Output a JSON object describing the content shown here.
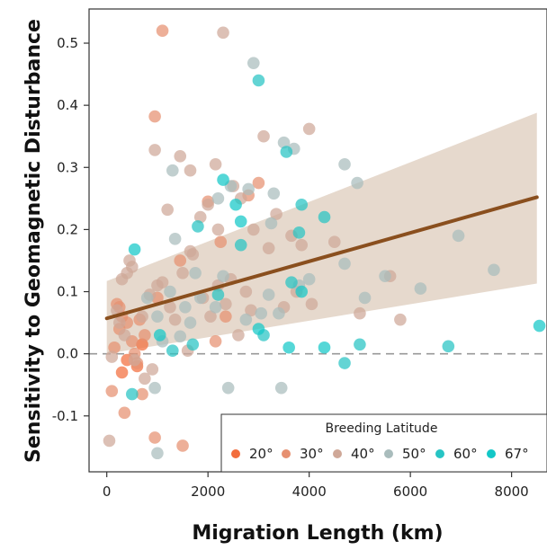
{
  "chart_data": {
    "type": "scatter",
    "xlabel": "Migration Length (km)",
    "ylabel": "Sensitivity to Geomagnetic Disturbance",
    "xlim": [
      -350,
      8700
    ],
    "ylim": [
      -0.19,
      0.555
    ],
    "xticks": [
      0,
      2000,
      4000,
      6000,
      8000
    ],
    "yticks": [
      -0.1,
      0.0,
      0.1,
      0.2,
      0.3,
      0.4,
      0.5
    ],
    "ytick_labels": [
      "-0.1",
      "0.0",
      "0.1",
      "0.2",
      "0.3",
      "0.4",
      "0.5"
    ],
    "reference_line": {
      "y": 0.0,
      "style": "dashed",
      "color": "#999999"
    },
    "trend": {
      "x": [
        0,
        8500
      ],
      "y": [
        0.057,
        0.252
      ],
      "ci_lower": [
        0.0,
        0.113
      ],
      "ci_upper": [
        0.117,
        0.388
      ],
      "color": "#8a4f1e",
      "band_color": "#e2d2c4"
    },
    "legend": {
      "title": "Breeding Latitude",
      "position": "bottom-right",
      "entries": [
        {
          "label": "20°",
          "color": "#f26d3d"
        },
        {
          "label": "30°",
          "color": "#e69070"
        },
        {
          "label": "40°",
          "color": "#cfa898"
        },
        {
          "label": "50°",
          "color": "#a9bcbc"
        },
        {
          "label": "60°",
          "color": "#27c4c4"
        },
        {
          "label": "67°",
          "color": "#13c7c7"
        }
      ]
    },
    "series": [
      {
        "name": "20°",
        "color": "#f26d3d",
        "x": [
          700,
          400,
          600,
          300
        ],
        "y": [
          0.015,
          -0.01,
          -0.02,
          -0.03
        ]
      },
      {
        "name": "30°",
        "color": "#e69070",
        "x": [
          1100,
          950,
          200,
          300,
          250,
          400,
          500,
          550,
          350,
          600,
          700,
          750,
          100,
          150,
          250,
          1000,
          2000,
          2250,
          2800,
          3000,
          1500,
          950,
          1450,
          2350,
          2150,
          650
        ],
        "y": [
          0.52,
          0.382,
          0.08,
          0.06,
          0.04,
          0.05,
          0.02,
          0.0,
          -0.095,
          -0.015,
          -0.065,
          0.03,
          -0.06,
          0.01,
          0.075,
          0.09,
          0.245,
          0.18,
          0.255,
          0.275,
          -0.148,
          -0.135,
          0.15,
          0.06,
          0.02,
          0.055
        ]
      },
      {
        "name": "40°",
        "color": "#cfa898",
        "x": [
          2300,
          950,
          1200,
          1450,
          1650,
          1850,
          2000,
          2150,
          2200,
          2500,
          2650,
          2900,
          3100,
          3350,
          3650,
          3850,
          4000,
          4500,
          5000,
          5600,
          5800,
          700,
          850,
          500,
          450,
          400,
          300,
          250,
          200,
          350,
          550,
          750,
          900,
          1000,
          1100,
          1250,
          1350,
          1500,
          1650,
          1700,
          1900,
          2050,
          2200,
          2350,
          2450,
          2600,
          2750,
          2850,
          3200,
          3500,
          3750,
          4050,
          100,
          50,
          1600
        ],
        "y": [
          0.517,
          0.328,
          0.232,
          0.318,
          0.295,
          0.22,
          0.24,
          0.305,
          0.2,
          0.27,
          0.25,
          0.2,
          0.35,
          0.225,
          0.19,
          0.175,
          0.362,
          0.18,
          0.065,
          0.125,
          0.055,
          0.06,
          0.095,
          0.14,
          0.15,
          0.13,
          0.12,
          0.05,
          0.07,
          0.03,
          -0.01,
          -0.04,
          -0.025,
          0.11,
          0.115,
          0.075,
          0.055,
          0.13,
          0.165,
          0.16,
          0.09,
          0.06,
          0.11,
          0.08,
          0.12,
          0.03,
          0.1,
          0.07,
          0.17,
          0.075,
          0.1,
          0.08,
          -0.005,
          -0.14,
          0.005
        ]
      },
      {
        "name": "50°",
        "color": "#a9bcbc",
        "x": [
          2900,
          1300,
          1350,
          1750,
          1850,
          2200,
          2450,
          2800,
          3250,
          3300,
          3500,
          3700,
          4700,
          4950,
          5500,
          6200,
          6950,
          7650,
          1550,
          1000,
          1100,
          1250,
          1450,
          1650,
          2150,
          2300,
          2750,
          3050,
          3200,
          3400,
          3800,
          4000,
          4700,
          5100,
          800,
          950,
          1000,
          3250,
          3450,
          2400
        ],
        "y": [
          0.468,
          0.295,
          0.185,
          0.13,
          0.09,
          0.25,
          0.27,
          0.265,
          0.21,
          0.258,
          0.34,
          0.33,
          0.305,
          0.275,
          0.125,
          0.105,
          0.19,
          0.135,
          0.075,
          0.06,
          0.02,
          0.1,
          0.028,
          0.05,
          0.075,
          0.125,
          0.055,
          0.065,
          0.095,
          0.065,
          0.11,
          0.12,
          0.145,
          0.09,
          0.09,
          -0.055,
          -0.16,
          -0.15,
          -0.055,
          -0.055
        ]
      },
      {
        "name": "60°",
        "color": "#27c4c4",
        "x": [
          3000,
          3550,
          3850,
          4300,
          2650,
          1800,
          3650,
          4700,
          5000,
          6750,
          1700,
          2200,
          3800,
          1300,
          3100,
          500
        ],
        "y": [
          0.44,
          0.325,
          0.24,
          0.22,
          0.175,
          0.205,
          0.115,
          -0.015,
          0.015,
          0.012,
          0.015,
          0.095,
          0.195,
          0.005,
          0.03,
          -0.065
        ]
      },
      {
        "name": "67°",
        "color": "#13c7c7",
        "x": [
          550,
          2650,
          8550,
          3600,
          3850,
          2550,
          2300,
          3000,
          4300,
          1050
        ],
        "y": [
          0.168,
          0.213,
          0.045,
          0.01,
          0.1,
          0.24,
          0.28,
          0.04,
          0.01,
          0.03
        ]
      }
    ]
  }
}
